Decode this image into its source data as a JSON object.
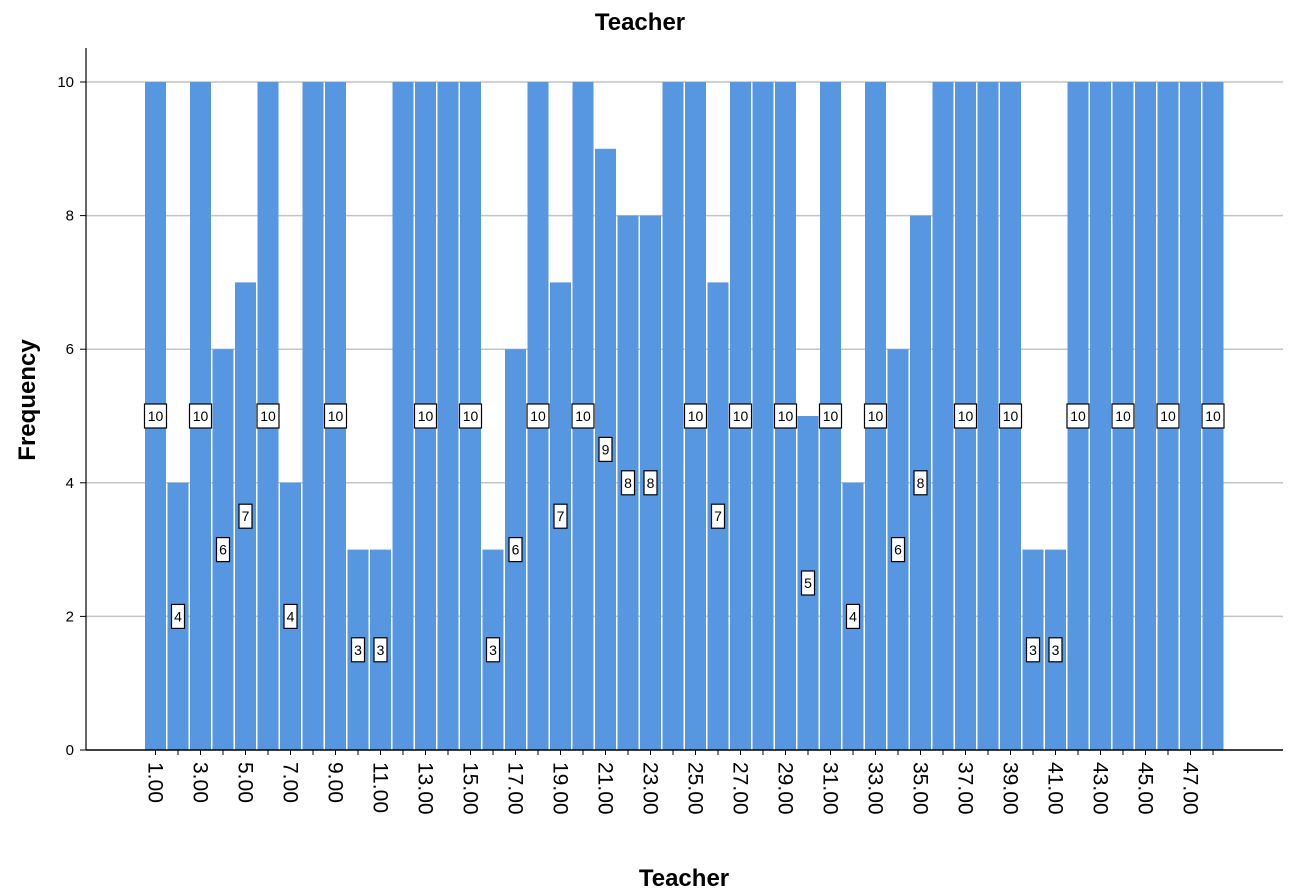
{
  "chart_data": {
    "type": "bar",
    "title": "Teacher",
    "xlabel": "Teacher",
    "ylabel": "Frequency",
    "ylim": [
      0,
      10
    ],
    "yticks": [
      "0",
      "2",
      "4",
      "6",
      "8",
      "10"
    ],
    "grid": "horizontal",
    "categories": [
      "1.00",
      "2.00",
      "3.00",
      "4.00",
      "5.00",
      "6.00",
      "7.00",
      "8.00",
      "9.00",
      "10.00",
      "11.00",
      "12.00",
      "13.00",
      "14.00",
      "15.00",
      "16.00",
      "17.00",
      "18.00",
      "19.00",
      "20.00",
      "21.00",
      "22.00",
      "23.00",
      "24.00",
      "25.00",
      "26.00",
      "27.00",
      "28.00",
      "29.00",
      "30.00",
      "31.00",
      "32.00",
      "33.00",
      "34.00",
      "35.00",
      "36.00",
      "37.00",
      "38.00",
      "39.00",
      "40.00",
      "41.00",
      "42.00",
      "43.00",
      "44.00",
      "45.00",
      "46.00",
      "47.00",
      "48.00"
    ],
    "values": [
      10,
      4,
      10,
      6,
      7,
      10,
      4,
      10,
      10,
      3,
      3,
      10,
      10,
      10,
      10,
      3,
      6,
      10,
      7,
      10,
      9,
      8,
      8,
      10,
      10,
      7,
      10,
      10,
      10,
      5,
      10,
      4,
      10,
      6,
      8,
      10,
      10,
      10,
      10,
      3,
      3,
      10,
      10,
      10,
      10,
      10,
      10,
      10
    ],
    "shown_tick_labels": [
      "1.00",
      "3.00",
      "5.00",
      "7.00",
      "9.00",
      "11.00",
      "13.00",
      "15.00",
      "17.00",
      "19.00",
      "21.00",
      "23.00",
      "25.00",
      "27.00",
      "29.00",
      "31.00",
      "33.00",
      "35.00",
      "37.00",
      "39.00",
      "41.00",
      "43.00",
      "45.00",
      "47.00"
    ],
    "data_labels": [
      "10",
      "4",
      "10",
      "6",
      "7",
      "10",
      "4",
      "",
      "10",
      "3",
      "3",
      "",
      "10",
      "",
      "10",
      "3",
      "6",
      "10",
      "7",
      "10",
      "9",
      "8",
      "8",
      "",
      "10",
      "7",
      "10",
      "",
      "10",
      "5",
      "10",
      "4",
      "10",
      "6",
      "8",
      "",
      "10",
      "",
      "10",
      "3",
      "3",
      "10",
      "",
      "10",
      "",
      "10",
      "",
      "10"
    ],
    "bar_color": "#5796e1",
    "gridline_color": "#c4c4c4"
  }
}
